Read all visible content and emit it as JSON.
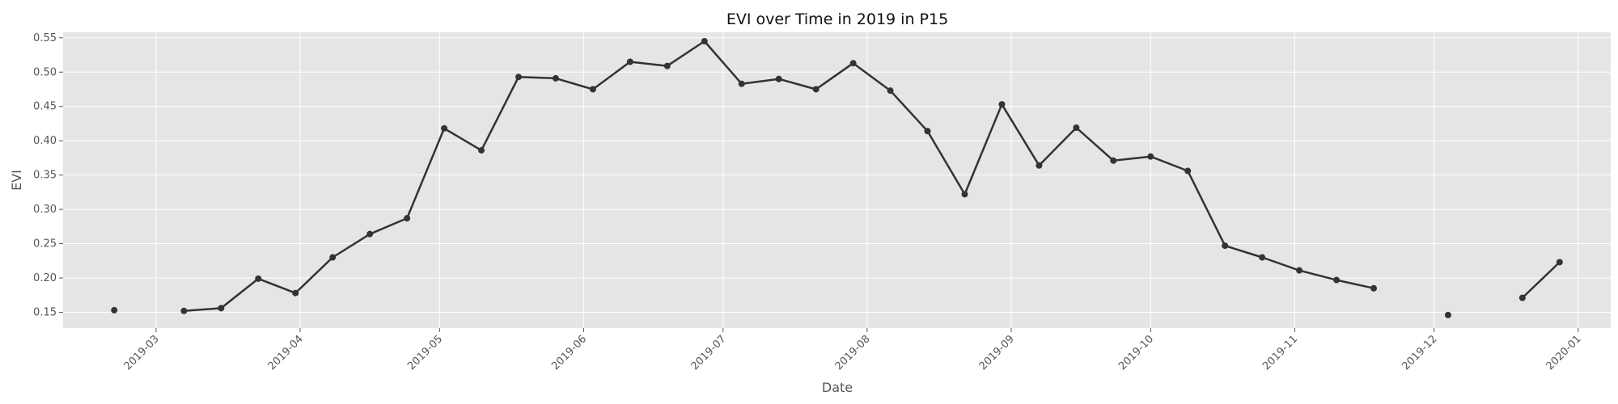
{
  "chart_data": {
    "type": "line",
    "title": "EVI over Time in 2019 in P15",
    "xlabel": "Date",
    "ylabel": "EVI",
    "xlim": [
      "2019-02-09",
      "2020-01-08"
    ],
    "ylim": [
      0.127,
      0.558
    ],
    "grid": true,
    "x_ticks": [
      "2019-03-01",
      "2019-04-01",
      "2019-05-01",
      "2019-06-01",
      "2019-07-01",
      "2019-08-01",
      "2019-09-01",
      "2019-10-01",
      "2019-11-01",
      "2019-12-01",
      "2020-01-01"
    ],
    "x_tick_labels": [
      "2019-03",
      "2019-04",
      "2019-05",
      "2019-06",
      "2019-07",
      "2019-08",
      "2019-09",
      "2019-10",
      "2019-11",
      "2019-12",
      "2020-01"
    ],
    "y_ticks": [
      0.15,
      0.2,
      0.25,
      0.3,
      0.35,
      0.4,
      0.45,
      0.5,
      0.55
    ],
    "y_tick_labels": [
      "0.15",
      "0.20",
      "0.25",
      "0.30",
      "0.35",
      "0.40",
      "0.45",
      "0.50",
      "0.55"
    ],
    "colors": {
      "line": "#333333",
      "plot_bg": "#e5e5e5",
      "grid": "#ffffff"
    },
    "series": [
      {
        "x": [
          "2019-02-20",
          "2019-03-07",
          "2019-03-15",
          "2019-03-23",
          "2019-03-31",
          "2019-04-08",
          "2019-04-16",
          "2019-04-24",
          "2019-05-02",
          "2019-05-10",
          "2019-05-18",
          "2019-05-26",
          "2019-06-03",
          "2019-06-11",
          "2019-06-19",
          "2019-06-27",
          "2019-07-05",
          "2019-07-13",
          "2019-07-21",
          "2019-07-29",
          "2019-08-06",
          "2019-08-14",
          "2019-08-22",
          "2019-08-30",
          "2019-09-07",
          "2019-09-15",
          "2019-09-23",
          "2019-10-01",
          "2019-10-09",
          "2019-10-17",
          "2019-10-25",
          "2019-11-02",
          "2019-11-10",
          "2019-11-18",
          "2019-12-04",
          "2019-12-20",
          "2019-12-28"
        ],
        "y": [
          0.153,
          0.152,
          0.156,
          0.199,
          0.178,
          0.23,
          0.264,
          0.287,
          0.418,
          0.386,
          0.493,
          0.491,
          0.475,
          0.515,
          0.509,
          0.545,
          0.483,
          0.49,
          0.475,
          0.513,
          0.473,
          0.414,
          0.322,
          0.453,
          0.364,
          0.419,
          0.371,
          0.377,
          0.356,
          0.247,
          0.23,
          0.211,
          0.197,
          0.185,
          0.146,
          0.171,
          0.223
        ],
        "line_breaks_after": [
          "2019-02-20",
          "2019-11-18",
          "2019-12-04"
        ]
      }
    ]
  }
}
